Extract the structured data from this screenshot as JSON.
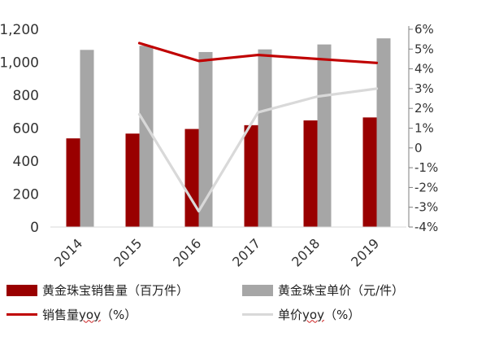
{
  "chart_data": {
    "type": "bar+line",
    "categories": [
      "2014",
      "2015",
      "2016",
      "2017",
      "2018",
      "2019"
    ],
    "series": [
      {
        "name": "黄金珠宝销售量（百万件）",
        "kind": "bar",
        "axis": "left",
        "color": "#990000",
        "values": [
          538,
          567,
          595,
          618,
          647,
          665
        ]
      },
      {
        "name": "黄金珠宝单价（元/件）",
        "kind": "bar",
        "axis": "left",
        "color": "#a6a6a6",
        "values": [
          1075,
          1100,
          1062,
          1078,
          1108,
          1145
        ]
      },
      {
        "name": "销售量yoy（%）",
        "kind": "line",
        "axis": "right",
        "color": "#c00000",
        "values": [
          null,
          5.3,
          4.4,
          4.7,
          4.5,
          4.3
        ]
      },
      {
        "name": "单价yoy（%）",
        "kind": "line",
        "axis": "right",
        "color": "#d9d9d9",
        "values": [
          null,
          1.7,
          -3.2,
          1.8,
          2.6,
          3.0
        ]
      }
    ],
    "yleft": {
      "ticks": [
        "0",
        "200",
        "400",
        "600",
        "800",
        "1,000",
        "1,200"
      ],
      "lim": [
        0,
        1200
      ]
    },
    "yright": {
      "ticks": [
        "-4%",
        "-3%",
        "-2%",
        "-1%",
        "0",
        "1%",
        "2%",
        "3%",
        "4%",
        "5%",
        "6%"
      ],
      "lim": [
        -4,
        6
      ]
    },
    "legend": {
      "bar1": "黄金珠宝销售量（百万件）",
      "bar2": "黄金珠宝单价（元/件）",
      "line1_prefix": "销售量",
      "line1_yoy": "yoy",
      "line1_suffix": "（%）",
      "line2_prefix": "单价",
      "line2_yoy": "yoy",
      "line2_suffix": "（%）"
    },
    "grid": false,
    "legend_position": "bottom"
  }
}
